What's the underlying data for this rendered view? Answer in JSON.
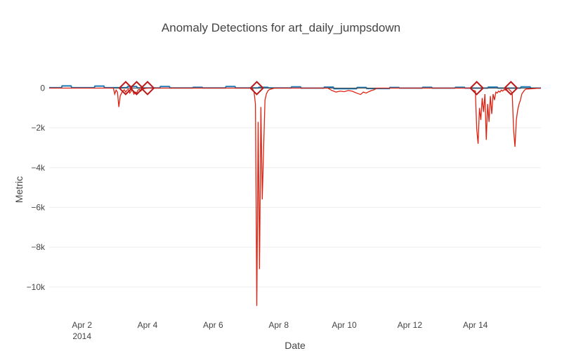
{
  "chart_data": {
    "type": "line",
    "title": "Anomaly Detections for art_daily_jumpsdown",
    "xlabel": "Date",
    "ylabel": "Metric",
    "xlim": [
      "2014-04-01 00:00",
      "2014-04-16 00:00"
    ],
    "ylim": [
      -11100,
      900
    ],
    "x_ticks": [
      {
        "date": "2014-04-02",
        "label": "Apr 2",
        "sublabel": "2014"
      },
      {
        "date": "2014-04-04",
        "label": "Apr 4",
        "sublabel": ""
      },
      {
        "date": "2014-04-06",
        "label": "Apr 6",
        "sublabel": ""
      },
      {
        "date": "2014-04-08",
        "label": "Apr 8",
        "sublabel": ""
      },
      {
        "date": "2014-04-10",
        "label": "Apr 10",
        "sublabel": ""
      },
      {
        "date": "2014-04-12",
        "label": "Apr 12",
        "sublabel": ""
      },
      {
        "date": "2014-04-14",
        "label": "Apr 14",
        "sublabel": ""
      }
    ],
    "y_ticks": [
      {
        "value": 0,
        "label": "0"
      },
      {
        "value": -2000,
        "label": "−2k"
      },
      {
        "value": -4000,
        "label": "−4k"
      },
      {
        "value": -6000,
        "label": "−6k"
      },
      {
        "value": -8000,
        "label": "−8k"
      },
      {
        "value": -10000,
        "label": "−10k"
      }
    ],
    "grid": true,
    "colors": {
      "value": "#1f77b4",
      "residual": "#dd2211",
      "anomaly": "#bb1a1a"
    },
    "series": [
      {
        "role": "value",
        "x": [
          "2014-04-01 00:00",
          "2014-04-01 09:00",
          "2014-04-01 09:30",
          "2014-04-01 16:00",
          "2014-04-01 16:30",
          "2014-04-02 09:00",
          "2014-04-02 09:30",
          "2014-04-02 16:00",
          "2014-04-02 16:30",
          "2014-04-03 09:00",
          "2014-04-03 09:30",
          "2014-04-03 16:00",
          "2014-04-03 16:30",
          "2014-04-04 09:00",
          "2014-04-04 09:30",
          "2014-04-04 16:00",
          "2014-04-04 16:30",
          "2014-04-05 09:00",
          "2014-04-05 09:30",
          "2014-04-05 16:00",
          "2014-04-05 16:30",
          "2014-04-06 09:00",
          "2014-04-06 09:30",
          "2014-04-06 16:00",
          "2014-04-06 16:30",
          "2014-04-07 09:00",
          "2014-04-07 09:30",
          "2014-04-07 16:00",
          "2014-04-07 16:30",
          "2014-04-08 09:00",
          "2014-04-08 09:30",
          "2014-04-08 16:00",
          "2014-04-08 16:30",
          "2014-04-09 09:00",
          "2014-04-09 09:30",
          "2014-04-09 16:00",
          "2014-04-09 16:30",
          "2014-04-10 09:00",
          "2014-04-10 09:30",
          "2014-04-10 16:00",
          "2014-04-10 16:30",
          "2014-04-11 09:00",
          "2014-04-11 09:30",
          "2014-04-11 16:00",
          "2014-04-11 16:30",
          "2014-04-12 09:00",
          "2014-04-12 09:30",
          "2014-04-12 16:00",
          "2014-04-12 16:30",
          "2014-04-13 09:00",
          "2014-04-13 09:30",
          "2014-04-13 16:00",
          "2014-04-13 16:30",
          "2014-04-14 09:00",
          "2014-04-14 09:30",
          "2014-04-14 16:00",
          "2014-04-14 16:30",
          "2014-04-15 09:00",
          "2014-04-15 09:30",
          "2014-04-15 16:00",
          "2014-04-15 16:30",
          "2014-04-16 00:00"
        ],
        "y": [
          20,
          20,
          110,
          110,
          20,
          20,
          100,
          100,
          20,
          20,
          80,
          80,
          10,
          10,
          80,
          80,
          10,
          10,
          40,
          40,
          10,
          10,
          80,
          80,
          10,
          10,
          40,
          40,
          10,
          10,
          60,
          60,
          0,
          0,
          50,
          50,
          -30,
          -30,
          30,
          30,
          -20,
          -20,
          30,
          30,
          0,
          0,
          40,
          40,
          0,
          0,
          40,
          40,
          0,
          0,
          50,
          50,
          0,
          0,
          60,
          60,
          0,
          0
        ]
      },
      {
        "role": "residual",
        "x": [
          "2014-04-01 00:00",
          "2014-04-02 23:00",
          "2014-04-03 00:00",
          "2014-04-03 01:00",
          "2014-04-03 02:00",
          "2014-04-03 03:00",
          "2014-04-03 04:00",
          "2014-04-03 05:00",
          "2014-04-03 06:00",
          "2014-04-03 07:00",
          "2014-04-03 08:00",
          "2014-04-03 09:00",
          "2014-04-03 10:00",
          "2014-04-03 11:00",
          "2014-04-03 12:00",
          "2014-04-03 13:00",
          "2014-04-03 14:00",
          "2014-04-03 15:00",
          "2014-04-03 16:00",
          "2014-04-03 17:00",
          "2014-04-03 18:00",
          "2014-04-03 19:00",
          "2014-04-03 20:00",
          "2014-04-03 21:00",
          "2014-04-03 22:00",
          "2014-04-03 23:00",
          "2014-04-04 00:00",
          "2014-04-07 04:00",
          "2014-04-07 05:00",
          "2014-04-07 06:00",
          "2014-04-07 07:00",
          "2014-04-07 08:00",
          "2014-04-07 09:00",
          "2014-04-07 10:00",
          "2014-04-07 11:00",
          "2014-04-07 12:00",
          "2014-04-07 13:00",
          "2014-04-07 14:00",
          "2014-04-07 15:00",
          "2014-04-07 16:00",
          "2014-04-07 17:00",
          "2014-04-07 18:00",
          "2014-04-07 19:00",
          "2014-04-07 20:00",
          "2014-04-07 21:00",
          "2014-04-09 12:00",
          "2014-04-09 15:00",
          "2014-04-09 18:00",
          "2014-04-09 21:00",
          "2014-04-10 00:00",
          "2014-04-10 03:00",
          "2014-04-10 06:00",
          "2014-04-10 09:00",
          "2014-04-10 12:00",
          "2014-04-10 14:00",
          "2014-04-10 16:00",
          "2014-04-10 18:00",
          "2014-04-10 20:00",
          "2014-04-10 22:00",
          "2014-04-11 00:00",
          "2014-04-13 20:00",
          "2014-04-13 22:00",
          "2014-04-14 00:00",
          "2014-04-14 01:00",
          "2014-04-14 02:00",
          "2014-04-14 03:00",
          "2014-04-14 04:00",
          "2014-04-14 05:00",
          "2014-04-14 06:00",
          "2014-04-14 07:00",
          "2014-04-14 08:00",
          "2014-04-14 09:00",
          "2014-04-14 10:00",
          "2014-04-14 11:00",
          "2014-04-14 12:00",
          "2014-04-14 13:00",
          "2014-04-14 14:00",
          "2014-04-14 15:00",
          "2014-04-14 16:00",
          "2014-04-14 17:00",
          "2014-04-14 18:00",
          "2014-04-14 19:00",
          "2014-04-14 20:00",
          "2014-04-14 21:00",
          "2014-04-14 22:00",
          "2014-04-14 23:00",
          "2014-04-15 00:00",
          "2014-04-15 01:00",
          "2014-04-15 02:00",
          "2014-04-15 03:00",
          "2014-04-15 04:00",
          "2014-04-15 05:00",
          "2014-04-15 06:00",
          "2014-04-15 07:00",
          "2014-04-15 08:00",
          "2014-04-15 09:00",
          "2014-04-15 10:00",
          "2014-04-15 11:00",
          "2014-04-15 12:00",
          "2014-04-15 13:00",
          "2014-04-16 00:00"
        ],
        "y": [
          0,
          0,
          -300,
          -100,
          -200,
          -950,
          -400,
          -250,
          -150,
          -80,
          -200,
          -100,
          -60,
          -250,
          -150,
          -80,
          -300,
          -200,
          -250,
          -100,
          -60,
          -150,
          -80,
          -40,
          -20,
          -10,
          0,
          0,
          -50,
          -200,
          -800,
          -10950,
          -1700,
          -9100,
          -950,
          -5600,
          -3000,
          -600,
          -300,
          -150,
          -80,
          -60,
          -40,
          -20,
          0,
          0,
          -120,
          -200,
          -150,
          -180,
          -120,
          -160,
          -250,
          -320,
          -200,
          -250,
          -180,
          -120,
          -80,
          0,
          0,
          -100,
          -150,
          -2050,
          -2800,
          -1000,
          -1600,
          -500,
          -1200,
          -300,
          -2600,
          -800,
          -1700,
          -400,
          -1300,
          -300,
          -600,
          -200,
          -250,
          -150,
          -200,
          -100,
          -150,
          -80,
          -100,
          -60,
          0,
          -100,
          -150,
          -300,
          -2100,
          -2950,
          -1600,
          -1100,
          -800,
          -600,
          -300,
          -200,
          -100,
          -50,
          0
        ]
      }
    ],
    "anomalies": {
      "x": [
        "2014-04-03 08:00",
        "2014-04-03 16:00",
        "2014-04-04 00:00",
        "2014-04-07 08:00",
        "2014-04-14 01:00",
        "2014-04-15 02:00"
      ],
      "y": [
        0,
        0,
        0,
        0,
        0,
        0
      ]
    }
  }
}
